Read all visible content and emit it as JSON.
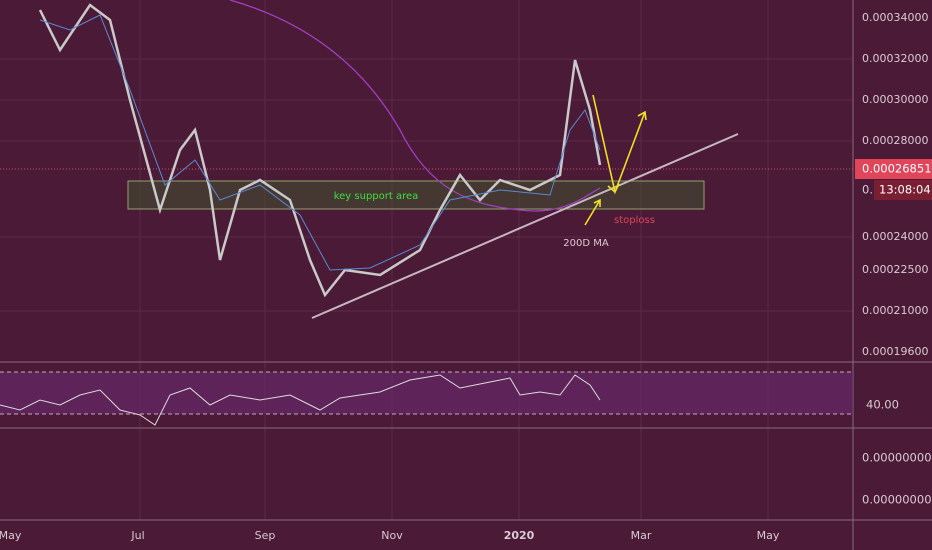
{
  "price_axis": {
    "labels": [
      "0.00034000",
      "0.00032000",
      "0.00030000",
      "0.00028000",
      "0.00024000",
      "0.00022500",
      "0.00021000",
      "0.00019600"
    ]
  },
  "current_price": "0.00026851",
  "countdown": {
    "prefix": "0.",
    "time": "13:08:04"
  },
  "rsi_axis": {
    "label": "40.00"
  },
  "lower_axis": {
    "labels": [
      "0.00000000",
      "0.00000000"
    ]
  },
  "time_axis": {
    "labels": [
      "May",
      "Jul",
      "Sep",
      "Nov",
      "2020",
      "Mar",
      "May"
    ]
  },
  "annotations": {
    "support": "key support area",
    "stoploss": "stoploss",
    "ma": "200D MA"
  }
}
